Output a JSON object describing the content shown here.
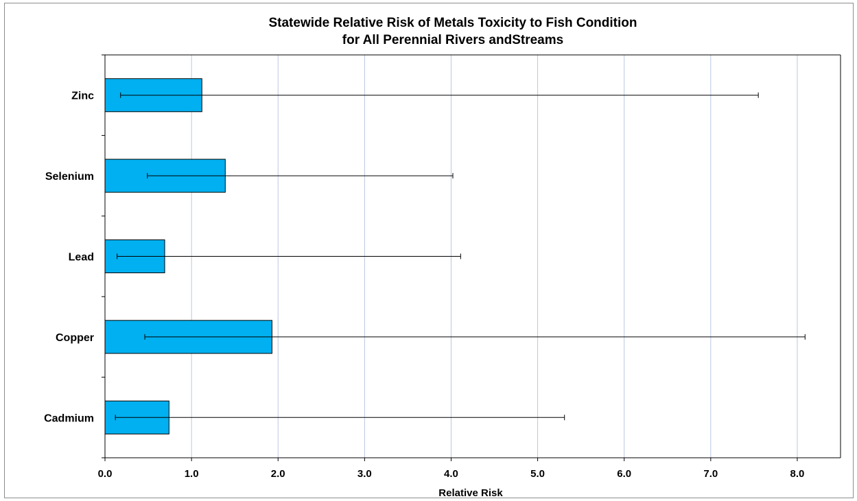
{
  "chart_data": {
    "type": "bar",
    "orientation": "horizontal",
    "title": "Statewide Relative Risk of Metals Toxicity to Fish Condition",
    "subtitle": "for All Perennial Rivers andStreams",
    "xlabel": "Relative Risk",
    "ylabel": "",
    "xlim": [
      0,
      8.5
    ],
    "x_ticks": [
      "0.0",
      "1.0",
      "2.0",
      "3.0",
      "4.0",
      "5.0",
      "6.0",
      "7.0",
      "8.0"
    ],
    "grid": "vertical",
    "legend": "none",
    "bar_color": "#00b0f0",
    "categories": [
      "Zinc",
      "Selenium",
      "Lead",
      "Copper",
      "Cadmium"
    ],
    "values": [
      1.12,
      1.39,
      0.69,
      1.93,
      0.74
    ],
    "error_low": [
      0.18,
      0.49,
      0.14,
      0.46,
      0.12
    ],
    "error_high": [
      7.55,
      4.02,
      4.11,
      8.09,
      5.31
    ]
  }
}
